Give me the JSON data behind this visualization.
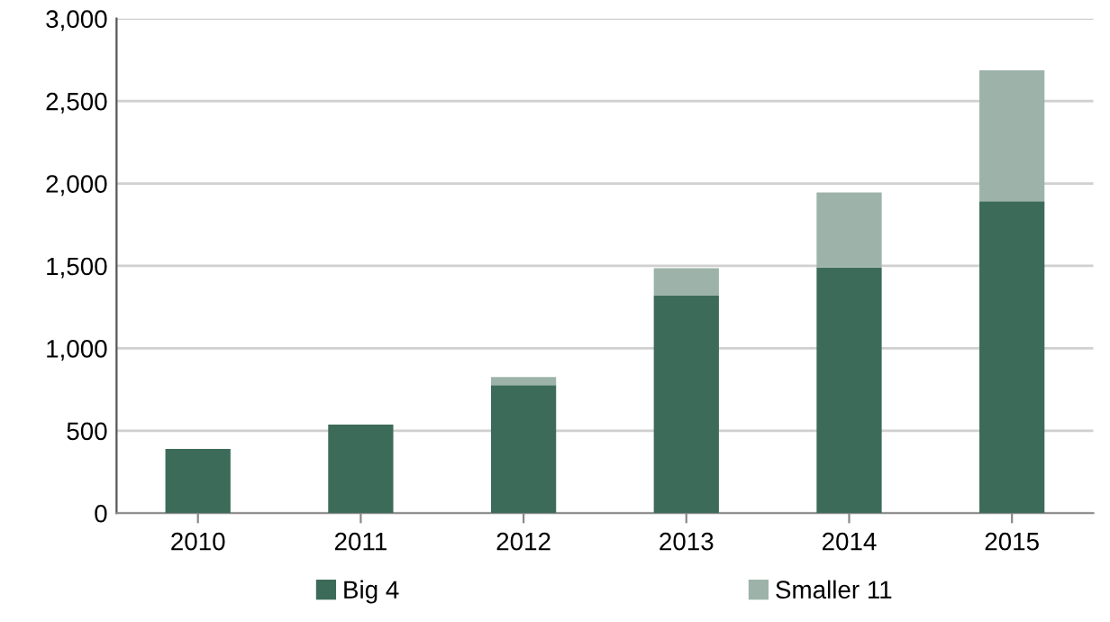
{
  "chart_data": {
    "type": "bar",
    "stacked": true,
    "categories": [
      "2010",
      "2011",
      "2012",
      "2013",
      "2014",
      "2015"
    ],
    "series": [
      {
        "name": "Big 4",
        "color": "#3d6b5a",
        "values": [
          390,
          537,
          776,
          1320,
          1490,
          1892
        ]
      },
      {
        "name": "Smaller 11",
        "color": "#9db3aa",
        "values": [
          null,
          null,
          50,
          166,
          456,
          795
        ]
      }
    ],
    "ylim": [
      0,
      3000
    ],
    "yticks": [
      {
        "value": 0,
        "label": "0"
      },
      {
        "value": 500,
        "label": "500"
      },
      {
        "value": 1000,
        "label": "1,000"
      },
      {
        "value": 1500,
        "label": "1,500"
      },
      {
        "value": 2000,
        "label": "2,000"
      },
      {
        "value": 2500,
        "label": "2,500"
      },
      {
        "value": 3000,
        "label": "3,000"
      }
    ],
    "grid": "y",
    "legend": "bottom"
  }
}
